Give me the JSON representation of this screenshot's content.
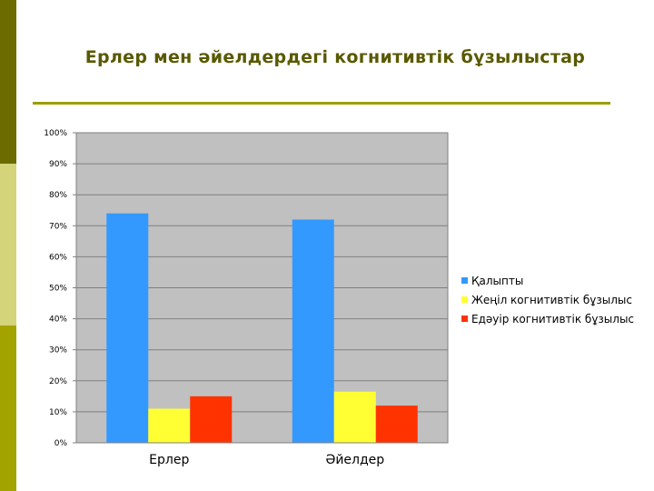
{
  "slide": {
    "title": "Ерлер мен әйелдердегі когнитивтік бұзылыстар",
    "strip_colors": [
      "#6b6b00",
      "#d4d47a",
      "#a3a300"
    ]
  },
  "chart_data": {
    "type": "bar",
    "categories": [
      "Ерлер",
      "Әйелдер"
    ],
    "series": [
      {
        "name": "Қалыпты",
        "color": "#3399ff",
        "values": [
          74,
          72
        ]
      },
      {
        "name": "Жеңіл когнитивтік бұзылыс",
        "color": "#ffff33",
        "values": [
          11,
          16.5
        ]
      },
      {
        "name": "Едәуір когнитивтік бұзылыс",
        "color": "#ff3300",
        "values": [
          15,
          12
        ]
      }
    ],
    "ylim": [
      0,
      100
    ],
    "yticks": [
      "0%",
      "10%",
      "20%",
      "30%",
      "40%",
      "50%",
      "60%",
      "70%",
      "80%",
      "90%",
      "100%"
    ],
    "grid": true,
    "legend_position": "right",
    "plot_background": "#c0c0c0"
  }
}
